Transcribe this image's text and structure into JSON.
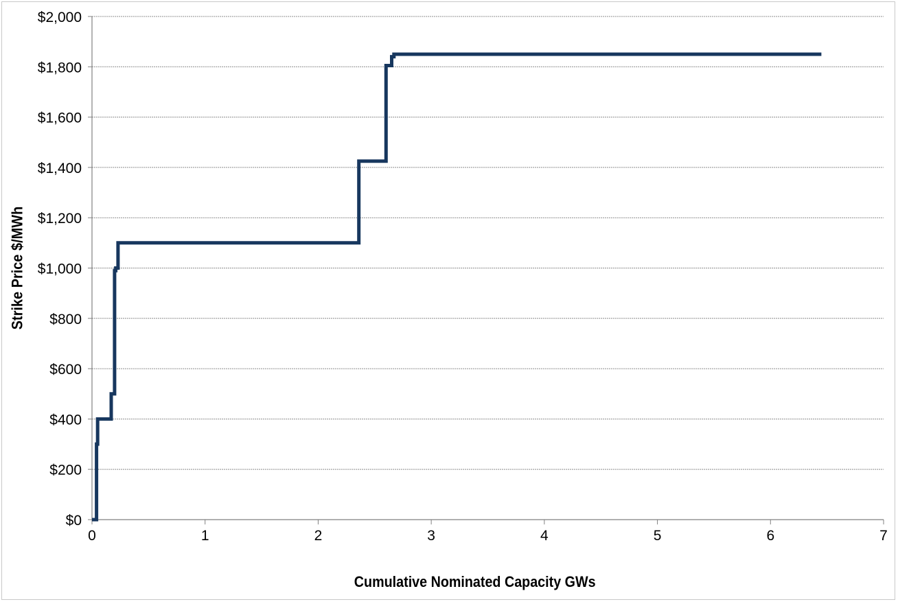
{
  "chart_data": {
    "type": "line",
    "title": "",
    "xlabel": "Cumulative Nominated Capacity GWs",
    "ylabel": "Strike Price $/MWh",
    "xlim": [
      0,
      7
    ],
    "ylim": [
      0,
      2000
    ],
    "x_ticks": [
      0,
      1,
      2,
      3,
      4,
      5,
      6,
      7
    ],
    "x_tick_labels": [
      "0",
      "1",
      "2",
      "3",
      "4",
      "5",
      "6",
      "7"
    ],
    "y_ticks": [
      0,
      200,
      400,
      600,
      800,
      1000,
      1200,
      1400,
      1600,
      1800,
      2000
    ],
    "y_tick_labels": [
      "$0",
      "$200",
      "$400",
      "$600",
      "$800",
      "$1,000",
      "$1,200",
      "$1,400",
      "$1,600",
      "$1,800",
      "$2,000"
    ],
    "grid": true,
    "grid_axis": "y",
    "legend": false,
    "line_color": "#17375e",
    "series": [
      {
        "x": [
          0.0,
          0.04,
          0.04,
          0.05,
          0.05,
          0.17,
          0.17,
          0.2,
          0.2,
          0.21,
          0.21,
          0.23,
          0.23,
          2.36,
          2.36,
          2.6,
          2.6,
          2.65,
          2.65,
          2.67,
          2.67,
          6.45
        ],
        "y": [
          0,
          0,
          300,
          300,
          400,
          400,
          500,
          500,
          990,
          990,
          1000,
          1000,
          1100,
          1100,
          1425,
          1425,
          1805,
          1805,
          1840,
          1840,
          1850,
          1850
        ]
      }
    ]
  }
}
